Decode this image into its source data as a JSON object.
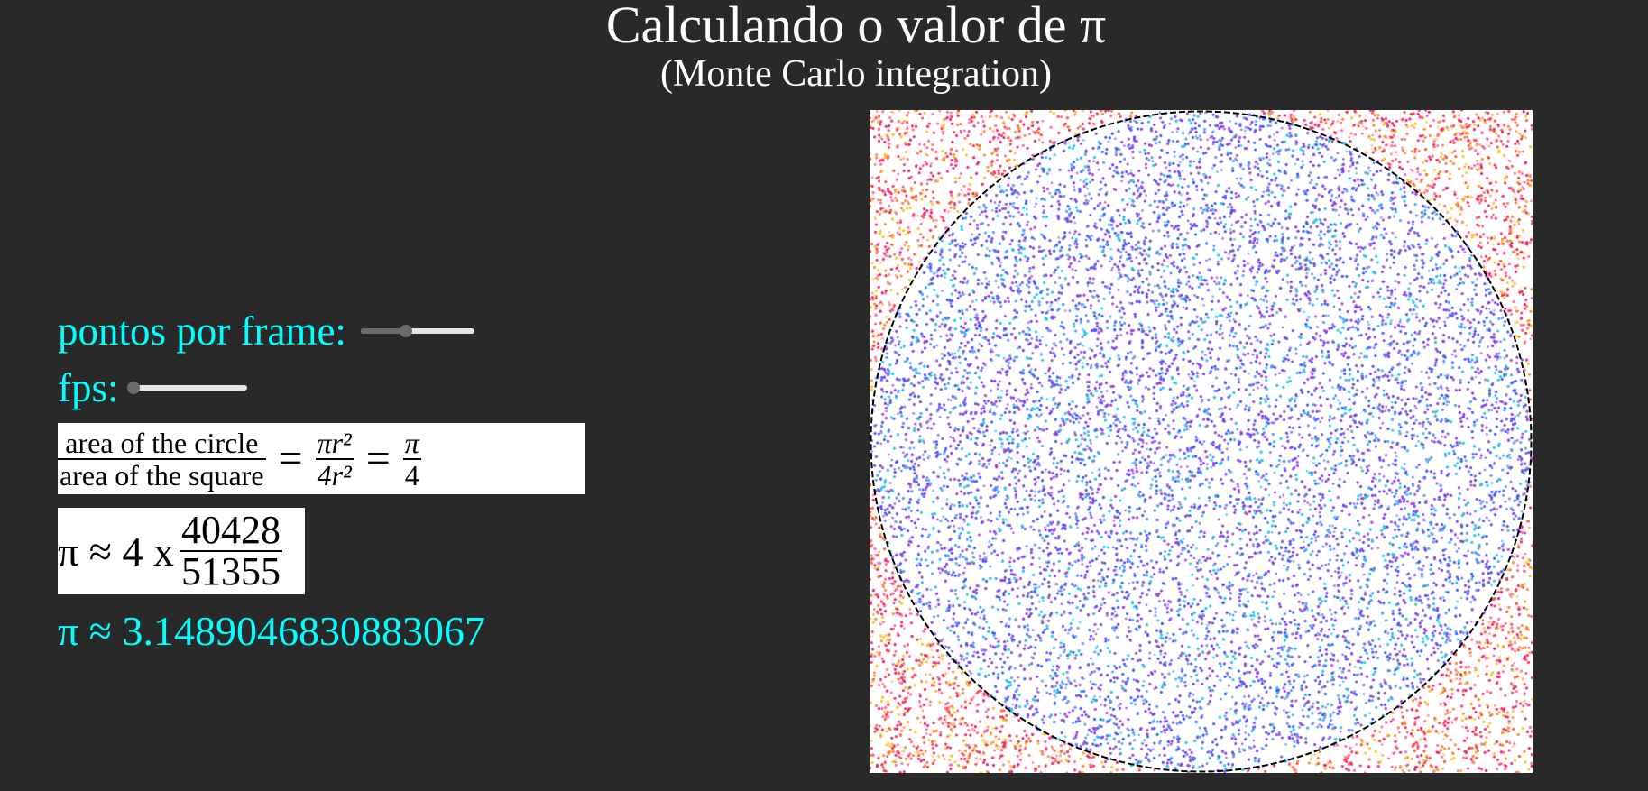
{
  "header": {
    "title": "Calculando o valor de π",
    "subtitle": "(Monte Carlo integration)"
  },
  "controls": {
    "points_per_frame": {
      "label": "pontos por frame:",
      "value_fraction": 0.4
    },
    "fps": {
      "label": "fps:",
      "value_fraction": 0.0
    }
  },
  "formula": {
    "numerator": "area of the circle",
    "denominator": "area of the square",
    "eq": "=",
    "mid_num": "πr²",
    "mid_den": "4r²",
    "right_num": "π",
    "right_den": "4"
  },
  "approximation": {
    "prefix": "π ≈ 4 x",
    "inside": "40428",
    "total": "51355"
  },
  "result": {
    "text": "π ≈ 3.1489046830883067"
  },
  "simulation": {
    "inside_colors": [
      "#3b5bff",
      "#6a4bff",
      "#8a3bf0",
      "#1fc8f0",
      "#4fa0ff",
      "#a04be0"
    ],
    "outside_colors": [
      "#ff2a6a",
      "#ff4f3a",
      "#ff8a2a",
      "#ffc21f",
      "#e8206a",
      "#ff6a9a"
    ],
    "circle_outline_color": "#000000"
  }
}
